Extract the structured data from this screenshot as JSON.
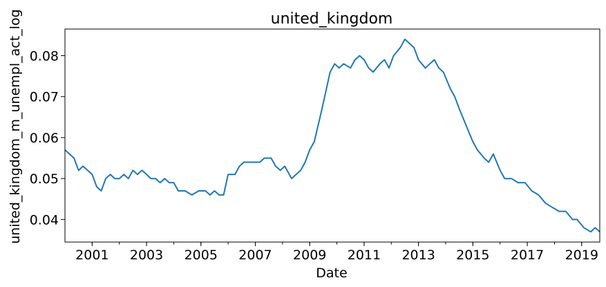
{
  "chart_data": {
    "type": "line",
    "title": "united_kingdom",
    "xlabel": "Date",
    "ylabel": "united_kingdom_m_unempl_act_log",
    "x_ticks": [
      "2001",
      "2003",
      "2005",
      "2007",
      "2009",
      "2011",
      "2013",
      "2015",
      "2017",
      "2019"
    ],
    "y_ticks": [
      "0.04",
      "0.05",
      "0.06",
      "0.07",
      "0.08"
    ],
    "xlim": [
      "2000-01",
      "2019-09"
    ],
    "ylim": [
      0.0345,
      0.0865
    ],
    "grid": false,
    "color": "#1f77b4",
    "series": [
      {
        "points": [
          [
            "2000-01",
            0.057
          ],
          [
            "2000-03",
            0.056
          ],
          [
            "2000-05",
            0.055
          ],
          [
            "2000-07",
            0.052
          ],
          [
            "2000-09",
            0.053
          ],
          [
            "2000-11",
            0.052
          ],
          [
            "2001-01",
            0.051
          ],
          [
            "2001-03",
            0.048
          ],
          [
            "2001-05",
            0.047
          ],
          [
            "2001-07",
            0.05
          ],
          [
            "2001-09",
            0.051
          ],
          [
            "2001-11",
            0.05
          ],
          [
            "2002-01",
            0.05
          ],
          [
            "2002-03",
            0.051
          ],
          [
            "2002-05",
            0.05
          ],
          [
            "2002-07",
            0.052
          ],
          [
            "2002-09",
            0.051
          ],
          [
            "2002-11",
            0.052
          ],
          [
            "2003-01",
            0.051
          ],
          [
            "2003-03",
            0.05
          ],
          [
            "2003-05",
            0.05
          ],
          [
            "2003-07",
            0.049
          ],
          [
            "2003-09",
            0.05
          ],
          [
            "2003-11",
            0.049
          ],
          [
            "2004-01",
            0.049
          ],
          [
            "2004-03",
            0.047
          ],
          [
            "2004-06",
            0.047
          ],
          [
            "2004-09",
            0.046
          ],
          [
            "2004-12",
            0.047
          ],
          [
            "2005-03",
            0.047
          ],
          [
            "2005-05",
            0.046
          ],
          [
            "2005-07",
            0.047
          ],
          [
            "2005-09",
            0.046
          ],
          [
            "2005-11",
            0.046
          ],
          [
            "2006-01",
            0.051
          ],
          [
            "2006-04",
            0.051
          ],
          [
            "2006-06",
            0.053
          ],
          [
            "2006-08",
            0.054
          ],
          [
            "2006-11",
            0.054
          ],
          [
            "2007-03",
            0.054
          ],
          [
            "2007-05",
            0.055
          ],
          [
            "2007-08",
            0.055
          ],
          [
            "2007-10",
            0.053
          ],
          [
            "2007-12",
            0.052
          ],
          [
            "2008-02",
            0.053
          ],
          [
            "2008-05",
            0.05
          ],
          [
            "2008-07",
            0.051
          ],
          [
            "2008-09",
            0.052
          ],
          [
            "2008-11",
            0.054
          ],
          [
            "2009-01",
            0.057
          ],
          [
            "2009-03",
            0.059
          ],
          [
            "2009-06",
            0.066
          ],
          [
            "2009-08",
            0.071
          ],
          [
            "2009-10",
            0.076
          ],
          [
            "2009-12",
            0.078
          ],
          [
            "2010-02",
            0.077
          ],
          [
            "2010-04",
            0.078
          ],
          [
            "2010-07",
            0.077
          ],
          [
            "2010-09",
            0.079
          ],
          [
            "2010-11",
            0.08
          ],
          [
            "2011-01",
            0.079
          ],
          [
            "2011-03",
            0.077
          ],
          [
            "2011-05",
            0.076
          ],
          [
            "2011-08",
            0.078
          ],
          [
            "2011-10",
            0.079
          ],
          [
            "2011-12",
            0.077
          ],
          [
            "2012-02",
            0.08
          ],
          [
            "2012-05",
            0.082
          ],
          [
            "2012-07",
            0.084
          ],
          [
            "2012-09",
            0.083
          ],
          [
            "2012-11",
            0.082
          ],
          [
            "2013-01",
            0.079
          ],
          [
            "2013-04",
            0.077
          ],
          [
            "2013-06",
            0.078
          ],
          [
            "2013-08",
            0.079
          ],
          [
            "2013-10",
            0.077
          ],
          [
            "2013-12",
            0.076
          ],
          [
            "2014-03",
            0.072
          ],
          [
            "2014-05",
            0.07
          ],
          [
            "2014-07",
            0.067
          ],
          [
            "2014-10",
            0.063
          ],
          [
            "2015-01",
            0.059
          ],
          [
            "2015-03",
            0.057
          ],
          [
            "2015-06",
            0.055
          ],
          [
            "2015-08",
            0.054
          ],
          [
            "2015-10",
            0.056
          ],
          [
            "2016-01",
            0.052
          ],
          [
            "2016-03",
            0.05
          ],
          [
            "2016-06",
            0.05
          ],
          [
            "2016-09",
            0.049
          ],
          [
            "2016-12",
            0.049
          ],
          [
            "2017-03",
            0.047
          ],
          [
            "2017-06",
            0.046
          ],
          [
            "2017-09",
            0.044
          ],
          [
            "2017-12",
            0.043
          ],
          [
            "2018-03",
            0.042
          ],
          [
            "2018-06",
            0.042
          ],
          [
            "2018-09",
            0.04
          ],
          [
            "2018-11",
            0.04
          ],
          [
            "2019-02",
            0.038
          ],
          [
            "2019-05",
            0.037
          ],
          [
            "2019-07",
            0.038
          ],
          [
            "2019-09",
            0.037
          ]
        ]
      }
    ]
  }
}
